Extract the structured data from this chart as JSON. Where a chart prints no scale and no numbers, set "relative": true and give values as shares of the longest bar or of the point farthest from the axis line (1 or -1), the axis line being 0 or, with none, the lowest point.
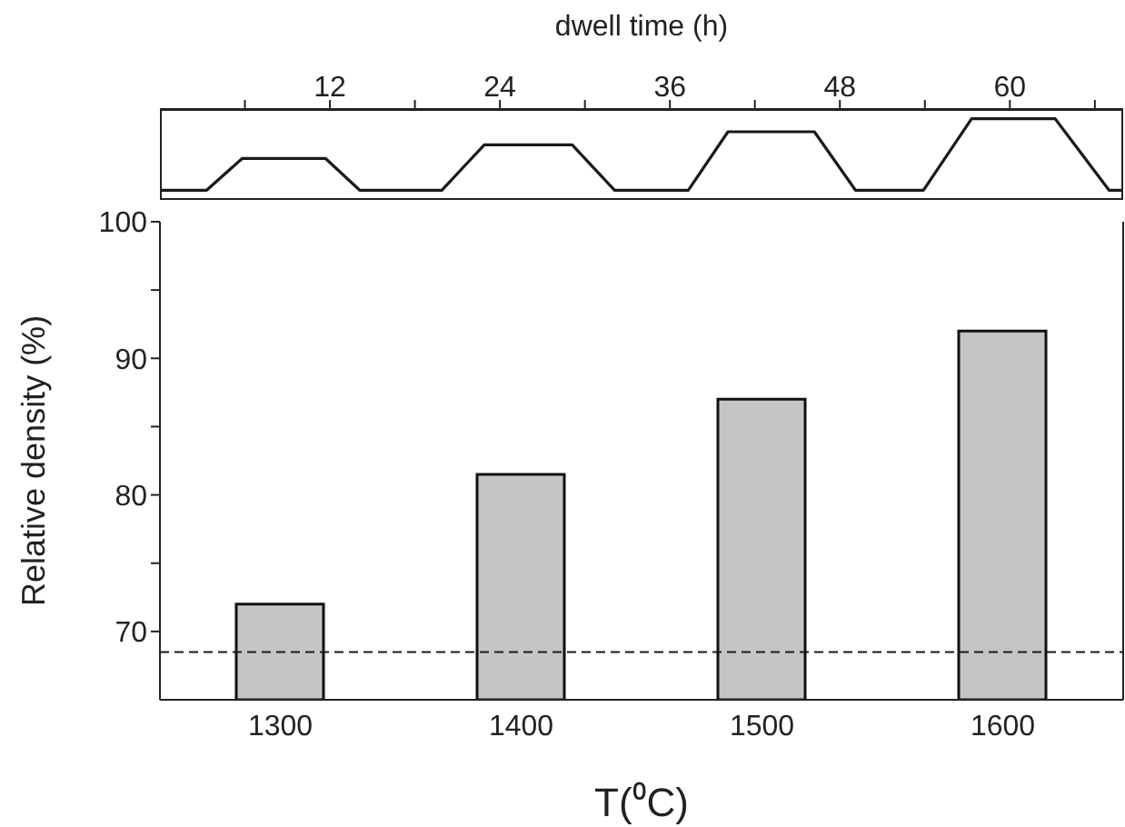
{
  "chart_data": [
    {
      "type": "line",
      "xlabel": "dwell time (h)",
      "relative": true,
      "tick_labels": "x",
      "xlim": [
        0,
        68
      ],
      "xticks": [
        {
          "value": 6,
          "label": null
        },
        12,
        {
          "value": 18,
          "label": null
        },
        24,
        {
          "value": 30,
          "label": null
        },
        36,
        {
          "value": 42,
          "label": null
        },
        48,
        {
          "value": 54,
          "label": null
        },
        60,
        {
          "value": 66,
          "label": null
        }
      ],
      "x": [
        0,
        3.3,
        5.8,
        11.7,
        14.1,
        19.9,
        22.9,
        29.1,
        32.1,
        37.3,
        40.1,
        46.2,
        49.1,
        53.9,
        57.3,
        63.2,
        67,
        68
      ],
      "series": [
        {
          "color": "#1a1a1a",
          "values": [
            0.12,
            0.12,
            0.51,
            0.51,
            0.12,
            0.12,
            0.68,
            0.68,
            0.12,
            0.12,
            0.84,
            0.84,
            0.12,
            0.12,
            1,
            1,
            0.12,
            0.12
          ]
        }
      ],
      "marker": "none",
      "line_style": "solid",
      "grid": false,
      "legend": false
    },
    {
      "type": "bar",
      "xlabel": "T(⁰C)",
      "ylabel": "Relative density (%)",
      "categories": [
        "1300",
        "1400",
        "1500",
        "1600"
      ],
      "values": [
        72,
        81.5,
        87,
        92
      ],
      "color": "#c4c6c4",
      "ylim": [
        65,
        100
      ],
      "yticks": [
        70,
        {
          "value": 75,
          "label": null
        },
        80,
        {
          "value": 85,
          "label": null
        },
        90,
        {
          "value": 95,
          "label": null
        },
        100
      ],
      "ref_lines": [
        {
          "axis": "y",
          "value": 68.5,
          "line_style": "dashed",
          "color": "#1a1a1a"
        }
      ],
      "grid": false,
      "legend": false
    }
  ]
}
